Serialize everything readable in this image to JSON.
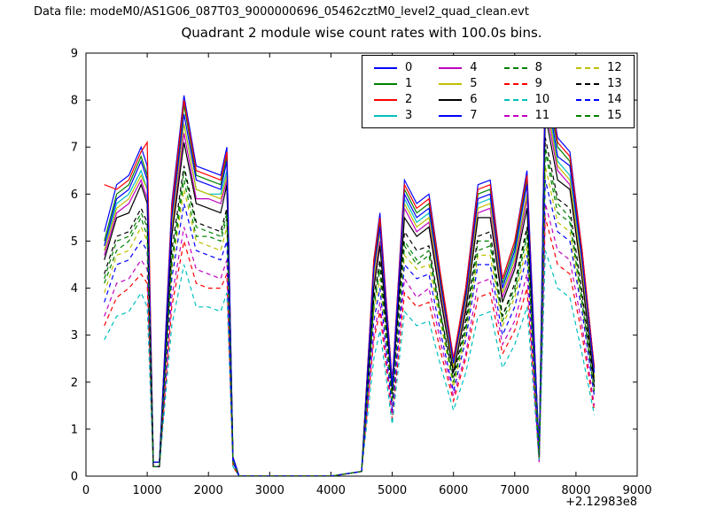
{
  "header": {
    "data_file_label": "Data file: modeM0/AS1G06_087T03_9000000696_05462cztM0_level2_quad_clean.evt"
  },
  "chart_data": {
    "type": "line",
    "title": "Quadrant 2 module wise count rates with 100.0s bins.",
    "xlabel": "",
    "ylabel": "",
    "xlim": [
      0,
      9000
    ],
    "ylim": [
      0,
      9
    ],
    "xticks": [
      0,
      1000,
      2000,
      3000,
      4000,
      5000,
      6000,
      7000,
      8000,
      9000
    ],
    "yticks": [
      0,
      1,
      2,
      3,
      4,
      5,
      6,
      7,
      8,
      9
    ],
    "x_offset_label": "+2.12983e8",
    "grid": false,
    "legend_position": "upper center",
    "legend_columns": 4,
    "x": [
      300,
      500,
      700,
      900,
      1000,
      1100,
      1200,
      1400,
      1600,
      1800,
      2000,
      2200,
      2300,
      2400,
      2500,
      3000,
      3500,
      4000,
      4500,
      4700,
      4800,
      5000,
      5200,
      5400,
      5600,
      5800,
      6000,
      6200,
      6400,
      6600,
      6800,
      7000,
      7200,
      7400,
      7500,
      7700,
      7900,
      8100,
      8300
    ],
    "series": [
      {
        "name": "0",
        "color": "#0000ff",
        "dash": false,
        "values": [
          5.2,
          6.2,
          6.4,
          7.0,
          6.6,
          0.3,
          0.3,
          5.8,
          8.1,
          6.6,
          6.5,
          6.4,
          7.0,
          0.4,
          0,
          0,
          0,
          0,
          0.1,
          4.6,
          5.6,
          2.0,
          6.3,
          5.8,
          6.0,
          4.2,
          2.5,
          4.0,
          6.2,
          6.3,
          4.2,
          5.0,
          6.5,
          0.5,
          8.8,
          7.2,
          6.9,
          4.8,
          2.3
        ]
      },
      {
        "name": "1",
        "color": "#008000",
        "dash": false,
        "values": [
          5.0,
          6.0,
          6.2,
          6.8,
          6.4,
          0.3,
          0.3,
          5.6,
          7.9,
          6.4,
          6.3,
          6.2,
          6.8,
          0.4,
          0,
          0,
          0,
          0,
          0.1,
          4.5,
          5.4,
          1.9,
          6.1,
          5.6,
          5.8,
          4.1,
          2.4,
          3.9,
          6.0,
          6.1,
          4.1,
          4.9,
          6.3,
          0.5,
          8.5,
          7.0,
          6.7,
          4.7,
          2.2
        ]
      },
      {
        "name": "2",
        "color": "#ff0000",
        "dash": false,
        "values": [
          6.2,
          6.1,
          6.3,
          6.9,
          7.1,
          0.3,
          0.3,
          5.7,
          8.0,
          6.5,
          6.4,
          6.3,
          6.9,
          0.4,
          0,
          0,
          0,
          0,
          0.1,
          4.6,
          5.5,
          2.0,
          6.2,
          5.7,
          5.9,
          4.2,
          2.5,
          4.0,
          6.1,
          6.2,
          4.2,
          5.0,
          6.4,
          0.5,
          8.7,
          7.1,
          6.8,
          4.8,
          2.3
        ]
      },
      {
        "name": "3",
        "color": "#00bfbf",
        "dash": false,
        "values": [
          4.8,
          5.8,
          6.0,
          6.5,
          6.1,
          0.3,
          0.3,
          5.4,
          7.5,
          6.1,
          6.0,
          6.0,
          6.5,
          0.4,
          0,
          0,
          0,
          0,
          0.1,
          4.3,
          5.2,
          1.9,
          5.9,
          5.4,
          5.6,
          3.9,
          2.3,
          3.7,
          5.8,
          5.9,
          3.9,
          4.7,
          6.0,
          0.5,
          8.2,
          6.7,
          6.4,
          4.5,
          2.1
        ]
      },
      {
        "name": "4",
        "color": "#bf00bf",
        "dash": false,
        "values": [
          4.7,
          5.6,
          5.8,
          6.3,
          5.9,
          0.3,
          0.3,
          5.2,
          7.3,
          5.9,
          5.9,
          5.8,
          6.3,
          0.4,
          0,
          0,
          0,
          0,
          0.1,
          4.1,
          5.0,
          1.8,
          5.7,
          5.2,
          5.4,
          3.8,
          2.3,
          3.6,
          5.6,
          5.7,
          3.8,
          4.5,
          5.9,
          0.5,
          7.9,
          6.5,
          6.2,
          4.3,
          2.1
        ]
      },
      {
        "name": "5",
        "color": "#bfbf00",
        "dash": false,
        "values": [
          4.8,
          5.7,
          5.9,
          6.4,
          6.1,
          0.3,
          0.3,
          5.3,
          7.5,
          6.1,
          6.0,
          5.9,
          6.4,
          0.4,
          0,
          0,
          0,
          0,
          0.1,
          4.2,
          5.2,
          1.8,
          5.8,
          5.3,
          5.5,
          3.9,
          2.3,
          3.7,
          5.7,
          5.8,
          3.9,
          4.6,
          6.0,
          0.5,
          8.1,
          6.6,
          6.3,
          4.4,
          2.1
        ]
      },
      {
        "name": "6",
        "color": "#000000",
        "dash": false,
        "values": [
          4.6,
          5.5,
          5.6,
          6.2,
          5.8,
          0.3,
          0.3,
          5.1,
          7.1,
          5.8,
          5.7,
          5.6,
          6.2,
          0.4,
          0,
          0,
          0,
          0,
          0.1,
          4.0,
          4.9,
          1.8,
          5.5,
          5.1,
          5.3,
          3.7,
          2.2,
          3.5,
          5.5,
          5.5,
          3.7,
          4.4,
          5.7,
          0.4,
          7.7,
          6.3,
          6.1,
          4.2,
          2.0
        ]
      },
      {
        "name": "7",
        "color": "#0000ff",
        "dash": false,
        "values": [
          4.9,
          5.9,
          6.1,
          6.7,
          6.3,
          0.3,
          0.3,
          5.5,
          7.7,
          6.3,
          6.2,
          6.1,
          6.7,
          0.4,
          0,
          0,
          0,
          0,
          0.1,
          4.4,
          5.3,
          1.9,
          6.0,
          5.5,
          5.7,
          4.0,
          2.4,
          3.8,
          5.9,
          6.0,
          4.0,
          4.8,
          6.2,
          0.5,
          8.4,
          6.8,
          6.6,
          4.6,
          2.2
        ]
      },
      {
        "name": "8",
        "color": "#008000",
        "dash": true,
        "values": [
          4.2,
          5.0,
          5.1,
          5.6,
          5.3,
          0.2,
          0.2,
          4.6,
          6.5,
          5.3,
          5.2,
          5.1,
          5.6,
          0.3,
          0,
          0,
          0,
          0,
          0.1,
          3.7,
          4.5,
          1.6,
          5.0,
          4.6,
          4.8,
          3.4,
          2.0,
          3.2,
          5.0,
          5.0,
          3.4,
          4.0,
          5.2,
          0.4,
          7.0,
          5.8,
          5.5,
          3.8,
          1.8
        ]
      },
      {
        "name": "9",
        "color": "#ff0000",
        "dash": true,
        "values": [
          3.2,
          3.8,
          4.0,
          4.3,
          4.1,
          0.2,
          0.2,
          3.6,
          5.0,
          4.1,
          4.0,
          4.0,
          4.3,
          0.2,
          0,
          0,
          0,
          0,
          0.1,
          2.9,
          3.5,
          1.2,
          3.9,
          3.6,
          3.7,
          2.6,
          1.6,
          2.5,
          3.8,
          3.9,
          2.6,
          3.1,
          4.0,
          0.3,
          5.5,
          4.5,
          4.3,
          3.0,
          1.4
        ]
      },
      {
        "name": "10",
        "color": "#00bfbf",
        "dash": true,
        "values": [
          2.9,
          3.4,
          3.5,
          3.9,
          3.6,
          0.2,
          0.2,
          3.2,
          4.5,
          3.6,
          3.6,
          3.5,
          3.9,
          0.2,
          0,
          0,
          0,
          0,
          0.1,
          2.5,
          3.1,
          1.1,
          3.5,
          3.2,
          3.3,
          2.3,
          1.4,
          2.2,
          3.4,
          3.5,
          2.3,
          2.8,
          3.6,
          0.3,
          4.8,
          4.0,
          3.8,
          2.6,
          1.3
        ]
      },
      {
        "name": "11",
        "color": "#bf00bf",
        "dash": true,
        "values": [
          3.4,
          4.1,
          4.2,
          4.6,
          4.4,
          0.2,
          0.2,
          3.8,
          5.3,
          4.4,
          4.3,
          4.2,
          4.6,
          0.3,
          0,
          0,
          0,
          0,
          0.1,
          3.0,
          3.7,
          1.3,
          4.2,
          3.8,
          4.0,
          2.8,
          1.7,
          2.6,
          4.1,
          4.2,
          2.8,
          3.3,
          4.3,
          0.3,
          5.8,
          4.8,
          4.6,
          3.2,
          1.5
        ]
      },
      {
        "name": "12",
        "color": "#bfbf00",
        "dash": true,
        "values": [
          3.9,
          4.7,
          4.8,
          5.3,
          5.0,
          0.2,
          0.2,
          4.4,
          6.1,
          5.0,
          4.9,
          4.8,
          5.3,
          0.3,
          0,
          0,
          0,
          0,
          0.1,
          3.5,
          4.2,
          1.5,
          4.7,
          4.4,
          4.5,
          3.2,
          1.9,
          3.0,
          4.7,
          4.7,
          3.2,
          3.8,
          4.9,
          0.4,
          6.6,
          5.4,
          5.2,
          3.6,
          1.7
        ]
      },
      {
        "name": "13",
        "color": "#000000",
        "dash": true,
        "values": [
          4.3,
          5.1,
          5.2,
          5.7,
          5.4,
          0.2,
          0.2,
          4.8,
          6.6,
          5.4,
          5.3,
          5.2,
          5.7,
          0.3,
          0,
          0,
          0,
          0,
          0.1,
          3.8,
          4.6,
          1.6,
          5.2,
          4.8,
          4.9,
          3.4,
          2.1,
          3.3,
          5.1,
          5.2,
          3.4,
          4.1,
          5.3,
          0.4,
          7.2,
          5.9,
          5.7,
          3.9,
          1.9
        ]
      },
      {
        "name": "14",
        "color": "#0000ff",
        "dash": true,
        "values": [
          3.7,
          4.5,
          4.6,
          5.0,
          4.8,
          0.2,
          0.2,
          4.2,
          5.8,
          4.8,
          4.7,
          4.6,
          5.0,
          0.3,
          0,
          0,
          0,
          0,
          0.1,
          3.3,
          4.0,
          1.4,
          4.5,
          4.2,
          4.3,
          3.0,
          1.8,
          2.9,
          4.5,
          4.5,
          3.0,
          3.6,
          4.7,
          0.4,
          6.3,
          5.2,
          5.0,
          3.5,
          1.7
        ]
      },
      {
        "name": "15",
        "color": "#008000",
        "dash": true,
        "values": [
          4.1,
          4.8,
          5.0,
          5.5,
          5.1,
          0.2,
          0.2,
          4.5,
          6.3,
          5.1,
          5.1,
          5.0,
          5.5,
          0.3,
          0,
          0,
          0,
          0,
          0.1,
          3.6,
          4.4,
          1.6,
          4.9,
          4.5,
          4.7,
          3.3,
          2.0,
          3.1,
          4.8,
          4.9,
          3.3,
          3.9,
          5.1,
          0.4,
          6.9,
          5.6,
          5.4,
          3.7,
          1.8
        ]
      }
    ]
  }
}
